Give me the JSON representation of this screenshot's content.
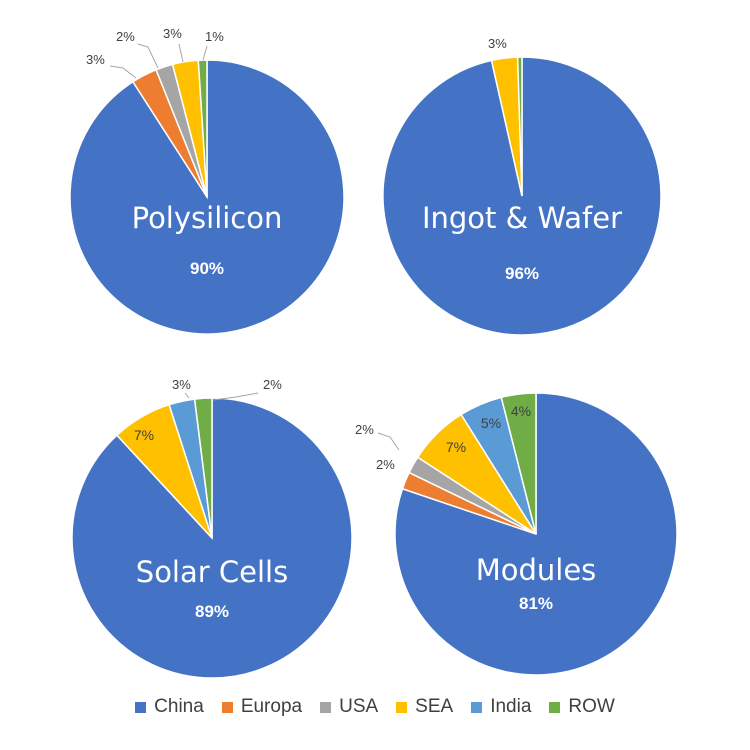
{
  "colors": {
    "China": "#4472c4",
    "Europa": "#ed7d31",
    "USA": "#a5a5a5",
    "SEA": "#ffc000",
    "India": "#5b9bd5",
    "ROW": "#70ad47"
  },
  "legend": [
    {
      "name": "China"
    },
    {
      "name": "Europa"
    },
    {
      "name": "USA"
    },
    {
      "name": "SEA"
    },
    {
      "name": "India"
    },
    {
      "name": "ROW"
    }
  ],
  "chart_data": [
    {
      "type": "pie",
      "title": "Polysilicon",
      "categories": [
        "China",
        "Europa",
        "USA",
        "SEA",
        "India",
        "ROW"
      ],
      "values": [
        90,
        3,
        2,
        3,
        0,
        1
      ],
      "labels": [
        "90%",
        "3%",
        "2%",
        "3%",
        "",
        "1%"
      ]
    },
    {
      "type": "pie",
      "title": "Ingot & Wafer",
      "categories": [
        "China",
        "Europa",
        "USA",
        "SEA",
        "India",
        "ROW"
      ],
      "values": [
        96,
        0,
        0,
        3,
        0,
        0.5
      ],
      "labels": [
        "96%",
        "",
        "",
        "3%",
        "",
        ""
      ]
    },
    {
      "type": "pie",
      "title": "Solar Cells",
      "categories": [
        "China",
        "Europa",
        "USA",
        "SEA",
        "India",
        "ROW"
      ],
      "values": [
        89,
        0,
        0,
        7,
        3,
        2
      ],
      "labels": [
        "89%",
        "",
        "",
        "7%",
        "3%",
        "2%"
      ]
    },
    {
      "type": "pie",
      "title": "Modules",
      "categories": [
        "China",
        "Europa",
        "USA",
        "SEA",
        "India",
        "ROW"
      ],
      "values": [
        81,
        2,
        2,
        7,
        5,
        4
      ],
      "labels": [
        "81%",
        "2%",
        "2%",
        "7%",
        "5%",
        "4%"
      ]
    }
  ]
}
